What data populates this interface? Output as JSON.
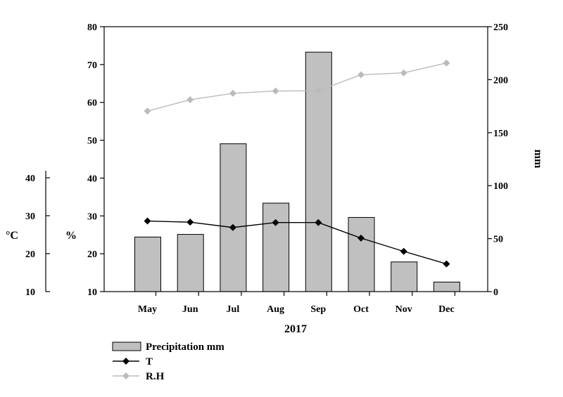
{
  "chart_data": {
    "type": "bar",
    "categories": [
      "May",
      "Jun",
      "Jul",
      "Aug",
      "Sep",
      "Oct",
      "Nov",
      "Dec"
    ],
    "xlabel": "2017",
    "colors": {
      "bar_fill": "#c0c0c0",
      "bar_stroke": "#000000",
      "t_line": "#000000",
      "rh_line": "#bbbbbb"
    },
    "series": [
      {
        "name": "Precipitation mm",
        "type": "bar",
        "axis": "right_mm",
        "values": [
          51.5,
          54.0,
          139.5,
          83.5,
          226.0,
          70.0,
          28.0,
          9.0
        ]
      },
      {
        "name": "T",
        "type": "line",
        "axis": "left_c",
        "values": [
          28.6,
          28.3,
          26.9,
          28.2,
          28.2,
          24.1,
          20.6,
          17.3
        ]
      },
      {
        "name": "R.H",
        "type": "line",
        "axis": "left_pct",
        "values": [
          57.7,
          60.7,
          62.4,
          63.0,
          63.1,
          67.3,
          67.8,
          70.4
        ]
      }
    ],
    "axes": {
      "left_pct": {
        "label": "%",
        "range": [
          10,
          80
        ],
        "ticks": [
          "10",
          "20",
          "30",
          "40",
          "50",
          "60",
          "70",
          "80"
        ]
      },
      "left_c": {
        "label": "°C",
        "range": [
          10,
          40
        ],
        "ticks": [
          "10",
          "20",
          "30",
          "40"
        ]
      },
      "right_mm": {
        "label": "mm",
        "range": [
          0,
          250
        ],
        "ticks": [
          "0",
          "50",
          "100",
          "150",
          "200",
          "250"
        ]
      }
    },
    "legend": {
      "position": "bottom-left"
    },
    "grid": false
  }
}
